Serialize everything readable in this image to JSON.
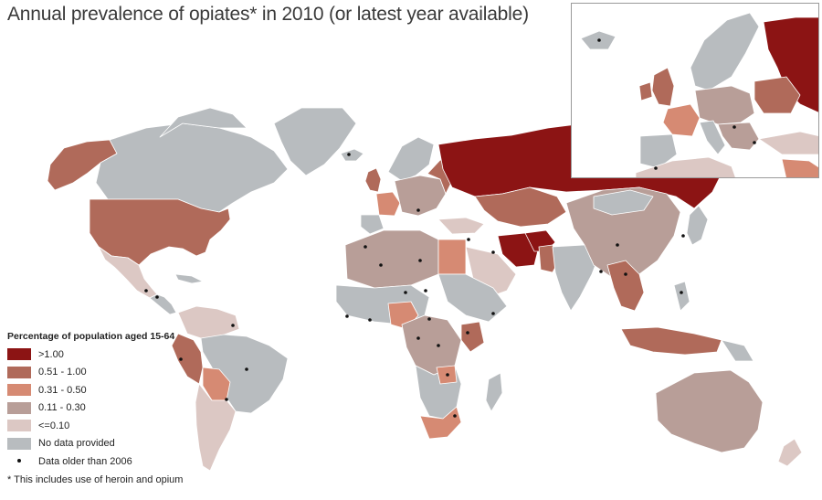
{
  "title": "Annual prevalence of opiates* in 2010 (or latest year available)",
  "legend": {
    "title": "Percentage of population aged 15-64",
    "items": [
      {
        "label": ">1.00",
        "color": "#8c1414"
      },
      {
        "label": "0.51 - 1.00",
        "color": "#b06a5a"
      },
      {
        "label": "0.31 - 0.50",
        "color": "#d68a73"
      },
      {
        "label": "0.11 - 0.30",
        "color": "#b89e98"
      },
      {
        "label": "<=0.10",
        "color": "#dcc8c4"
      },
      {
        "label": "No data provided",
        "color": "#b8bcbf"
      }
    ],
    "dot_label": "Data older than 2006"
  },
  "footnote": "* This includes use of heroin and opium"
}
